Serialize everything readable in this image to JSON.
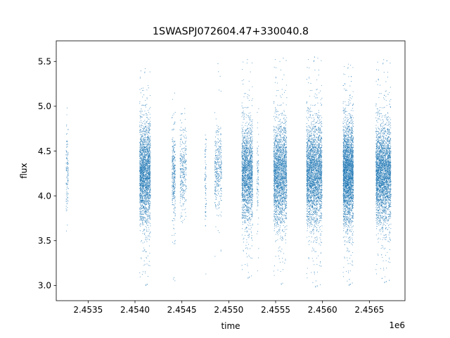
{
  "chart_data": {
    "type": "scatter",
    "title": "1SWASPJ072604.47+330040.8",
    "xlabel": "time",
    "ylabel": "flux",
    "x_offset_label": "1e6",
    "x_unit_scale": 1000000,
    "xlim": [
      2453160,
      2456880
    ],
    "ylim": [
      2.83,
      5.73
    ],
    "x_ticks": [
      2453500,
      2454000,
      2454500,
      2455000,
      2455500,
      2456000,
      2456500
    ],
    "x_tick_labels": [
      "2.4535",
      "2.4540",
      "2.4545",
      "2.4550",
      "2.4555",
      "2.4560",
      "2.4565"
    ],
    "y_ticks": [
      3.0,
      3.5,
      4.0,
      4.5,
      5.0,
      5.5
    ],
    "y_tick_labels": [
      "3.0",
      "3.5",
      "4.0",
      "4.5",
      "5.0",
      "5.5"
    ],
    "grid": false,
    "legend": "none",
    "marker_color": "#1f77b4",
    "series": [
      {
        "values_summary": "dense point clusters per observing season",
        "seasons": [
          {
            "x_start": 2453265,
            "x_end": 2453290,
            "center": 4.25,
            "spread": 0.22,
            "min": 3.52,
            "max": 5.15,
            "points": 120
          },
          {
            "x_start": 2454050,
            "x_end": 2454165,
            "center": 4.25,
            "spread": 0.28,
            "min": 2.97,
            "max": 5.45,
            "points": 2200
          },
          {
            "x_start": 2454395,
            "x_end": 2454430,
            "center": 4.22,
            "spread": 0.26,
            "min": 3.0,
            "max": 5.3,
            "points": 300
          },
          {
            "x_start": 2454480,
            "x_end": 2454550,
            "center": 4.3,
            "spread": 0.25,
            "min": 3.5,
            "max": 5.0,
            "points": 300
          },
          {
            "x_start": 2454745,
            "x_end": 2454760,
            "center": 4.15,
            "spread": 0.25,
            "min": 3.1,
            "max": 4.7,
            "points": 80
          },
          {
            "x_start": 2454850,
            "x_end": 2454925,
            "center": 4.3,
            "spread": 0.22,
            "min": 3.1,
            "max": 5.55,
            "points": 350
          },
          {
            "x_start": 2455140,
            "x_end": 2455255,
            "center": 4.25,
            "spread": 0.27,
            "min": 3.05,
            "max": 5.55,
            "points": 1800
          },
          {
            "x_start": 2455300,
            "x_end": 2455320,
            "center": 4.15,
            "spread": 0.3,
            "min": 3.1,
            "max": 5.1,
            "points": 80
          },
          {
            "x_start": 2455480,
            "x_end": 2455620,
            "center": 4.25,
            "spread": 0.28,
            "min": 2.98,
            "max": 5.58,
            "points": 2200
          },
          {
            "x_start": 2455830,
            "x_end": 2455995,
            "center": 4.25,
            "spread": 0.28,
            "min": 2.95,
            "max": 5.58,
            "points": 2800
          },
          {
            "x_start": 2456220,
            "x_end": 2456330,
            "center": 4.25,
            "spread": 0.28,
            "min": 2.97,
            "max": 5.5,
            "points": 2800
          },
          {
            "x_start": 2456570,
            "x_end": 2456730,
            "center": 4.25,
            "spread": 0.27,
            "min": 3.0,
            "max": 5.55,
            "points": 3000
          }
        ]
      }
    ]
  }
}
